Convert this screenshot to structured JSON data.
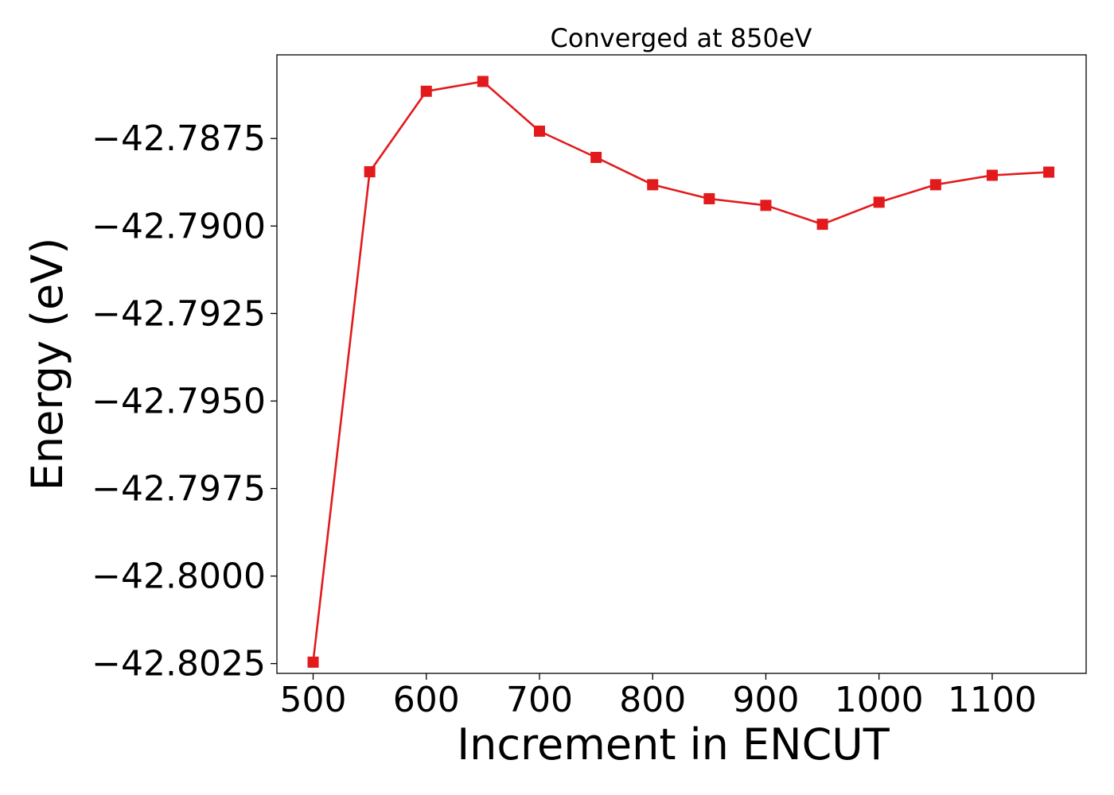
{
  "chart_data": {
    "type": "line",
    "title": "Converged at 850eV",
    "xlabel": "Increment in ENCUT",
    "ylabel": "Energy (eV)",
    "x": [
      500,
      550,
      600,
      650,
      700,
      750,
      800,
      850,
      900,
      950,
      1000,
      1050,
      1100,
      1150
    ],
    "series": [
      {
        "values": [
          -42.80246,
          -42.78845,
          -42.78615,
          -42.78587,
          -42.78729,
          -42.78804,
          -42.78882,
          -42.78922,
          -42.78941,
          -42.78995,
          -42.78932,
          -42.78882,
          -42.78855,
          -42.78846
        ],
        "color": "#e31a1c",
        "marker": "square"
      }
    ],
    "xlim": [
      468,
      1183
    ],
    "ylim": [
      -42.80278,
      -42.78511
    ],
    "xticks": [
      500,
      600,
      700,
      800,
      900,
      1000,
      1100
    ],
    "xtick_labels": [
      "500",
      "600",
      "700",
      "800",
      "900",
      "1000",
      "1100"
    ],
    "yticks": [
      -42.7875,
      -42.79,
      -42.7925,
      -42.795,
      -42.7975,
      -42.8,
      -42.8025
    ],
    "ytick_labels": [
      "−42.7875",
      "−42.7900",
      "−42.7925",
      "−42.7950",
      "−42.7975",
      "−42.8000",
      "−42.8025"
    ],
    "grid": false,
    "legend": "none"
  }
}
